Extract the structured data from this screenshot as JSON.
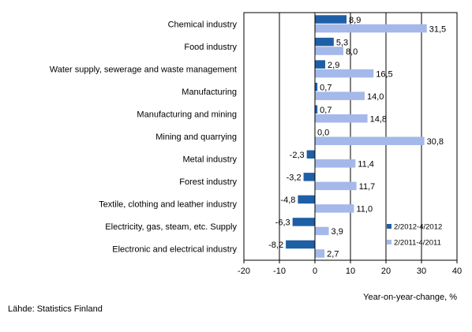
{
  "chart_data": {
    "type": "bar",
    "orientation": "horizontal",
    "categories": [
      "Chemical industry",
      "Food industry",
      "Water supply, sewerage and waste management",
      "Manufacturing",
      "Manufacturing and mining",
      "Mining and quarrying",
      "Metal industry",
      "Forest industry",
      "Textile, clothing and leather industry",
      "Electricity, gas, steam, etc. Supply",
      "Electronic and electrical industry"
    ],
    "series": [
      {
        "name": "2/2012-4/2012",
        "color": "#1f5fa6",
        "values": [
          8.9,
          5.3,
          2.9,
          0.7,
          0.7,
          0.0,
          -2.3,
          -3.2,
          -4.8,
          -6.3,
          -8.2
        ],
        "labels": [
          "8,9",
          "5,3",
          "2,9",
          "0,7",
          "0,7",
          "0,0",
          "-2,3",
          "-3,2",
          "-4,8",
          "-6,3",
          "-8,2"
        ]
      },
      {
        "name": "2/2011-4/2011",
        "color": "#a4b8ea",
        "values": [
          31.5,
          8.0,
          16.5,
          14.0,
          14.8,
          30.8,
          11.4,
          11.7,
          11.0,
          3.9,
          2.7
        ],
        "labels": [
          "31,5",
          "8,0",
          "16,5",
          "14,0",
          "14,8",
          "30,8",
          "11,4",
          "11,7",
          "11,0",
          "3,9",
          "2,7"
        ]
      }
    ],
    "xlim": [
      -20,
      40
    ],
    "xticks": [
      -20,
      -10,
      0,
      10,
      20,
      30,
      40
    ],
    "xtick_labels": [
      "-20",
      "-10",
      "0",
      "10",
      "20",
      "30",
      "40"
    ],
    "xlabel": "Year-on-year-change, %",
    "grid": "vertical lines at tens",
    "legend_position": "bottom-right"
  },
  "source_text": "Lähde: Statistics Finland"
}
